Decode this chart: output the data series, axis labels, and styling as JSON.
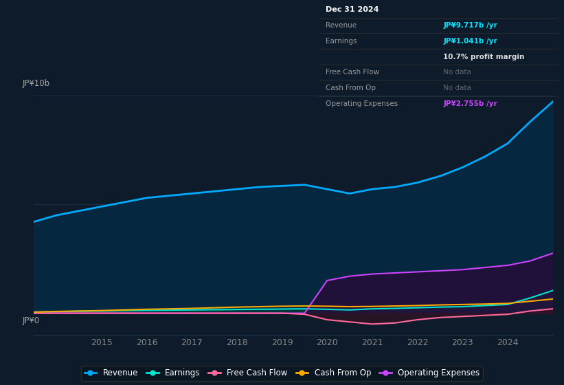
{
  "bg_color": "#0d1b2a",
  "x_years": [
    2013.5,
    2014,
    2014.5,
    2015,
    2015.5,
    2016,
    2016.5,
    2017,
    2017.5,
    2018,
    2018.5,
    2019,
    2019.5,
    2020,
    2020.5,
    2021,
    2021.5,
    2022,
    2022.5,
    2023,
    2023.5,
    2024,
    2024.5,
    2025.0
  ],
  "revenue": [
    4.2,
    4.5,
    4.7,
    4.9,
    5.1,
    5.3,
    5.4,
    5.5,
    5.6,
    5.7,
    5.8,
    5.85,
    5.9,
    5.7,
    5.5,
    5.7,
    5.8,
    6.0,
    6.3,
    6.7,
    7.2,
    7.8,
    8.8,
    9.717
  ],
  "earnings": [
    0.05,
    0.07,
    0.09,
    0.1,
    0.12,
    0.13,
    0.14,
    0.15,
    0.16,
    0.17,
    0.18,
    0.19,
    0.2,
    0.18,
    0.15,
    0.2,
    0.22,
    0.25,
    0.28,
    0.3,
    0.35,
    0.4,
    0.7,
    1.041
  ],
  "free_cash_flow": [
    0.0,
    0.0,
    0.0,
    0.0,
    0.0,
    0.0,
    0.0,
    0.0,
    0.0,
    0.0,
    0.0,
    0.0,
    -0.05,
    -0.3,
    -0.4,
    -0.5,
    -0.45,
    -0.3,
    -0.2,
    -0.15,
    -0.1,
    -0.05,
    0.1,
    0.2
  ],
  "cash_from_op": [
    0.05,
    0.08,
    0.1,
    0.12,
    0.15,
    0.18,
    0.2,
    0.22,
    0.25,
    0.28,
    0.3,
    0.32,
    0.33,
    0.32,
    0.3,
    0.31,
    0.33,
    0.35,
    0.38,
    0.4,
    0.42,
    0.45,
    0.55,
    0.65
  ],
  "op_expenses": [
    0.0,
    0.0,
    0.0,
    0.0,
    0.0,
    0.0,
    0.0,
    0.0,
    0.0,
    0.0,
    0.0,
    0.0,
    0.0,
    1.5,
    1.7,
    1.8,
    1.85,
    1.9,
    1.95,
    2.0,
    2.1,
    2.2,
    2.4,
    2.755
  ],
  "revenue_color": "#00aaff",
  "earnings_color": "#00e5d0",
  "free_cash_flow_color": "#ff6b9d",
  "cash_from_op_color": "#ffaa00",
  "op_expenses_color": "#cc44ff",
  "revenue_fill": "#052840",
  "earnings_fill": "#043a3a",
  "opex_fill": "#2a0a3a",
  "fcf_fill": "#3a1020",
  "x_ticks": [
    2015,
    2016,
    2017,
    2018,
    2019,
    2020,
    2021,
    2022,
    2023,
    2024
  ],
  "x_tick_labels": [
    "2015",
    "2016",
    "2017",
    "2018",
    "2019",
    "2020",
    "2021",
    "2022",
    "2023",
    "2024"
  ],
  "ylim": [
    -1.0,
    10.5
  ],
  "grid_color": "#1e3a4a",
  "info_rows": [
    {
      "label": "Dec 31 2024",
      "value": "",
      "value_color": "#ffffff",
      "is_header": true
    },
    {
      "label": "Revenue",
      "value": "JP¥9.717b /yr",
      "value_color": "#00e5ff",
      "is_header": false
    },
    {
      "label": "Earnings",
      "value": "JP¥1.041b /yr",
      "value_color": "#00e5ff",
      "is_header": false
    },
    {
      "label": "",
      "value": "10.7% profit margin",
      "value_color": "#dddddd",
      "is_header": false
    },
    {
      "label": "Free Cash Flow",
      "value": "No data",
      "value_color": "#666666",
      "is_header": false
    },
    {
      "label": "Cash From Op",
      "value": "No data",
      "value_color": "#666666",
      "is_header": false
    },
    {
      "label": "Operating Expenses",
      "value": "JP¥2.755b /yr",
      "value_color": "#cc44ff",
      "is_header": false
    }
  ],
  "legend_labels": [
    "Revenue",
    "Earnings",
    "Free Cash Flow",
    "Cash From Op",
    "Operating Expenses"
  ],
  "legend_colors": [
    "#00aaff",
    "#00e5d0",
    "#ff6b9d",
    "#ffaa00",
    "#cc44ff"
  ]
}
